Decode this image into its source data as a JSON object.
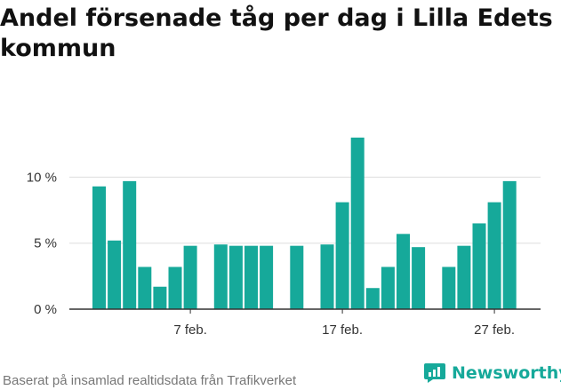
{
  "chart_data": {
    "type": "bar",
    "title": "Andel försenade tåg per dag i Lilla Edets kommun",
    "xlabel": "",
    "ylabel": "",
    "ylim": [
      0,
      14
    ],
    "yticks": [
      0,
      5,
      10
    ],
    "ytick_labels": [
      "0 %",
      "5 %",
      "10 %"
    ],
    "grid": true,
    "bar_color": "#16a99a",
    "days": [
      1,
      2,
      3,
      4,
      5,
      6,
      7,
      8,
      9,
      10,
      11,
      12,
      13,
      14,
      15,
      16,
      17,
      18,
      19,
      20,
      21,
      22,
      23,
      24,
      25,
      26,
      27,
      28
    ],
    "values": [
      9.3,
      5.2,
      9.7,
      3.2,
      1.7,
      3.2,
      4.8,
      null,
      4.9,
      4.8,
      4.8,
      4.8,
      null,
      4.8,
      null,
      4.9,
      8.1,
      13.0,
      1.6,
      3.2,
      5.7,
      4.7,
      null,
      3.2,
      4.8,
      6.5,
      8.1,
      9.7
    ],
    "xticks": [
      7,
      17,
      27
    ],
    "xtick_labels": [
      "7 feb.",
      "17 feb.",
      "27 feb."
    ]
  },
  "footer": {
    "source": "Baserat på insamlad realtidsdata från Trafikverket"
  },
  "brand": {
    "name": "Newsworthy",
    "color": "#16a99a",
    "icon": "newsworthy-logo-icon"
  }
}
